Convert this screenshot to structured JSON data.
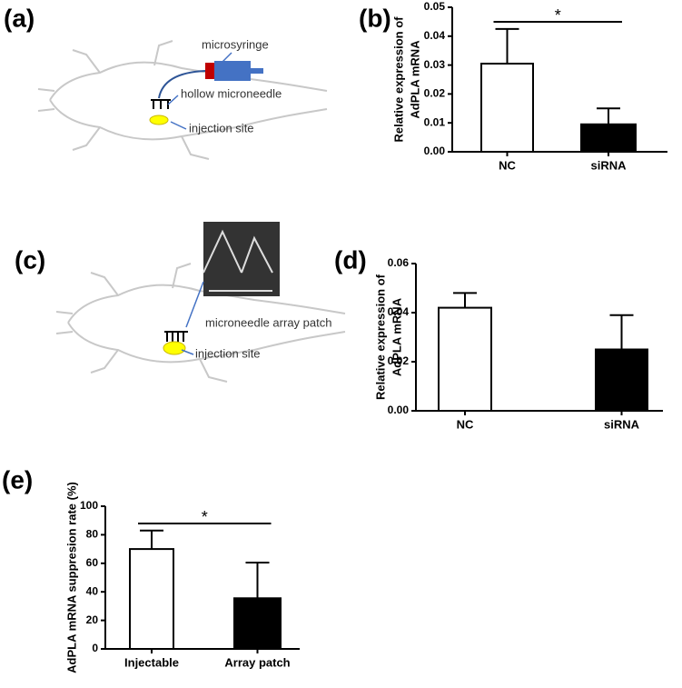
{
  "diagrams": [
    {
      "label": "(a)",
      "annotations": [
        "microsyringe",
        "hollow microneedle",
        "injection site"
      ]
    },
    {
      "label": "(c)",
      "annotations": [
        "microneedle array patch",
        "injection site"
      ]
    }
  ],
  "chart_data": [
    {
      "type": "bar",
      "panel_label": "(b)",
      "ylabel": [
        "Relative expression of",
        "AdPLA mRNA"
      ],
      "categories": [
        "NC",
        "siRNA"
      ],
      "values": [
        0.0305,
        0.0095
      ],
      "errors": [
        0.012,
        0.0055
      ],
      "colors": [
        "#ffffff",
        "#000000"
      ],
      "ylim": [
        0,
        0.05
      ],
      "yticks": [
        {
          "value": 0,
          "label": "0.00"
        },
        0.01,
        0.02,
        0.03,
        0.04,
        0.05
      ],
      "significance": "*"
    },
    {
      "type": "bar",
      "panel_label": "(d)",
      "ylabel": [
        "Relative expression of",
        "AdPLA mRNA"
      ],
      "categories": [
        "NC",
        "siRNA"
      ],
      "values": [
        0.042,
        0.025
      ],
      "errors": [
        0.006,
        0.014
      ],
      "colors": [
        "#ffffff",
        "#000000"
      ],
      "ylim": [
        0,
        0.06
      ],
      "yticks": [
        {
          "value": 0,
          "label": "0.00"
        },
        0.02,
        0.04,
        0.06
      ]
    },
    {
      "type": "bar",
      "panel_label": "(e)",
      "ylabel": [
        "AdPLA mRNA suppresion rate (%)"
      ],
      "categories": [
        "Injectable",
        "Array patch"
      ],
      "values": [
        70,
        35.5
      ],
      "errors": [
        13,
        25
      ],
      "colors": [
        "#ffffff",
        "#000000"
      ],
      "ylim": [
        0,
        100
      ],
      "yticks": [
        0,
        20,
        40,
        60,
        80,
        100
      ],
      "significance": "*"
    }
  ]
}
